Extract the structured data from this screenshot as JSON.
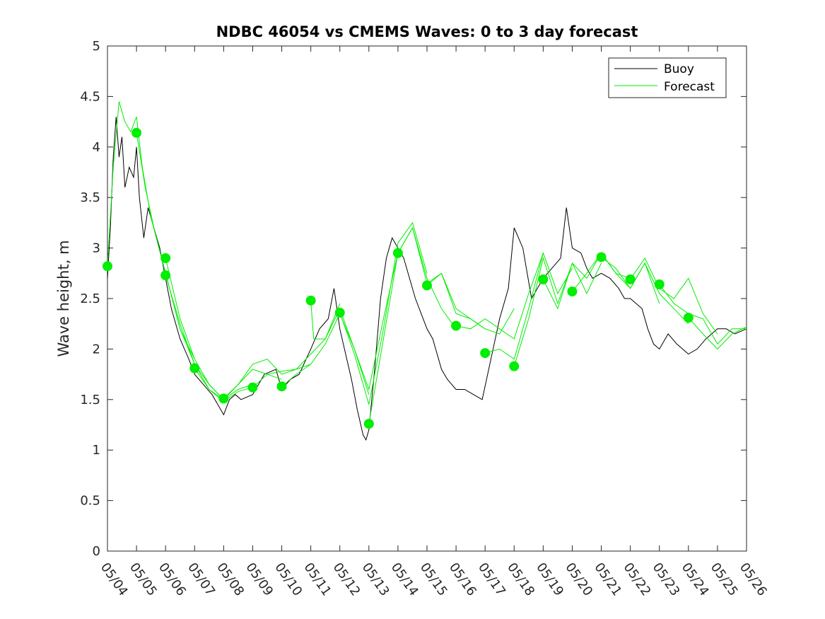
{
  "chart_data": {
    "type": "line",
    "title": "NDBC 46054 vs CMEMS Waves: 0 to 3 day forecast",
    "xlabel": "",
    "ylabel": "Wave height, m",
    "xlim": [
      "05/04",
      "05/26"
    ],
    "ylim": [
      0,
      5
    ],
    "x_tick_labels": [
      "05/04",
      "05/05",
      "05/06",
      "05/07",
      "05/08",
      "05/09",
      "05/10",
      "05/11",
      "05/12",
      "05/13",
      "05/14",
      "05/15",
      "05/16",
      "05/17",
      "05/18",
      "05/19",
      "05/20",
      "05/21",
      "05/22",
      "05/23",
      "05/24",
      "05/25",
      "05/26"
    ],
    "y_ticks": [
      0,
      0.5,
      1,
      1.5,
      2,
      2.5,
      3,
      3.5,
      4,
      4.5,
      5
    ],
    "y_tick_labels": [
      "0",
      "0.5",
      "1",
      "1.5",
      "2",
      "2.5",
      "3",
      "3.5",
      "4",
      "4.5",
      "5"
    ],
    "grid": false,
    "legend_position": "top-right",
    "colors": {
      "buoy": "#000000",
      "forecast": "#00ee00"
    },
    "series": [
      {
        "name": "Buoy",
        "style": "thin black line",
        "x_days": [
          0,
          0.1,
          0.2,
          0.3,
          0.4,
          0.5,
          0.6,
          0.75,
          0.9,
          1.0,
          1.1,
          1.25,
          1.4,
          1.6,
          1.8,
          2.0,
          2.2,
          2.5,
          2.8,
          3.0,
          3.3,
          3.6,
          3.8,
          4.0,
          4.2,
          4.4,
          4.6,
          5.0,
          5.4,
          5.8,
          6.0,
          6.3,
          6.6,
          7.0,
          7.3,
          7.6,
          7.8,
          8.0,
          8.2,
          8.4,
          8.6,
          8.8,
          8.9,
          9.0,
          9.2,
          9.4,
          9.6,
          9.8,
          10.0,
          10.2,
          10.4,
          10.6,
          10.8,
          11.0,
          11.2,
          11.3,
          11.5,
          11.7,
          12.0,
          12.3,
          12.6,
          12.9,
          13.2,
          13.5,
          13.8,
          14.0,
          14.3,
          14.6,
          15.0,
          15.3,
          15.6,
          15.8,
          16.0,
          16.3,
          16.5,
          16.7,
          17.0,
          17.3,
          17.6,
          17.8,
          18.0,
          18.2,
          18.4,
          18.6,
          18.8,
          19.0,
          19.3,
          19.6,
          20.0,
          20.3,
          20.6,
          20.8,
          21.0,
          21.3,
          21.6,
          22.0
        ],
        "values": [
          2.7,
          3.2,
          3.9,
          4.3,
          3.9,
          4.1,
          3.6,
          3.8,
          3.7,
          4.0,
          3.5,
          3.1,
          3.4,
          3.2,
          3.0,
          2.7,
          2.4,
          2.1,
          1.9,
          1.75,
          1.65,
          1.55,
          1.45,
          1.35,
          1.5,
          1.55,
          1.5,
          1.55,
          1.75,
          1.8,
          1.6,
          1.7,
          1.75,
          2.0,
          2.2,
          2.3,
          2.6,
          2.2,
          1.95,
          1.7,
          1.4,
          1.15,
          1.1,
          1.2,
          1.8,
          2.5,
          2.9,
          3.1,
          3.0,
          2.9,
          2.7,
          2.5,
          2.35,
          2.2,
          2.1,
          2.0,
          1.8,
          1.7,
          1.6,
          1.6,
          1.55,
          1.5,
          1.9,
          2.3,
          2.6,
          3.2,
          3.0,
          2.5,
          2.7,
          2.8,
          2.9,
          3.4,
          3.0,
          2.95,
          2.8,
          2.7,
          2.75,
          2.7,
          2.6,
          2.5,
          2.5,
          2.45,
          2.4,
          2.2,
          2.05,
          2.0,
          2.15,
          2.05,
          1.95,
          2.0,
          2.1,
          2.15,
          2.2,
          2.2,
          2.15,
          2.2
        ]
      },
      {
        "name": "Forecast",
        "style": "thin green lines, one per forecast cycle, dot at each cycle start",
        "runs": [
          {
            "start_day": 0,
            "x_days": [
              0,
              0.2,
              0.4,
              0.6,
              0.8,
              1.0,
              1.2,
              1.5,
              2.0,
              2.5,
              3.0
            ],
            "values": [
              2.82,
              3.8,
              4.45,
              4.25,
              4.15,
              4.3,
              3.8,
              3.3,
              2.75,
              2.2,
              1.9
            ]
          },
          {
            "start_day": 1,
            "x_days": [
              1.0,
              1.3,
              1.6,
              2.0,
              2.5,
              3.0,
              3.5,
              4.0
            ],
            "values": [
              4.14,
              3.6,
              3.2,
              2.75,
              2.2,
              1.85,
              1.65,
              1.5
            ]
          },
          {
            "start_day": 2,
            "x_days": [
              2.0,
              2.5,
              3.0,
              3.5,
              4.0,
              4.5,
              5.0
            ],
            "values": [
              2.9,
              2.3,
              1.9,
              1.65,
              1.5,
              1.6,
              1.65
            ]
          },
          {
            "start_day": 2,
            "x_days": [
              2.0,
              2.5,
              3.0,
              3.5,
              4.0,
              4.5,
              5.0
            ],
            "values": [
              2.73,
              2.25,
              1.85,
              1.6,
              1.48,
              1.58,
              1.62
            ]
          },
          {
            "start_day": 3,
            "x_days": [
              3.0,
              3.5,
              4.0,
              4.5,
              5.0,
              5.5,
              6.0
            ],
            "values": [
              1.81,
              1.6,
              1.5,
              1.65,
              1.8,
              1.75,
              1.7
            ]
          },
          {
            "start_day": 4,
            "x_days": [
              4.0,
              4.5,
              5.0,
              5.5,
              6.0,
              6.5,
              7.0
            ],
            "values": [
              1.51,
              1.65,
              1.85,
              1.9,
              1.75,
              1.8,
              1.85
            ]
          },
          {
            "start_day": 5,
            "x_days": [
              5.0,
              5.5,
              6.0,
              6.5,
              7.0,
              7.5,
              8.0
            ],
            "values": [
              1.62,
              1.75,
              1.78,
              1.8,
              1.95,
              2.1,
              2.45
            ]
          },
          {
            "start_day": 6,
            "x_days": [
              6.0,
              6.5,
              7.0,
              7.5,
              8.0,
              8.5,
              9.0
            ],
            "values": [
              1.63,
              1.75,
              1.85,
              2.05,
              2.35,
              2.0,
              1.55
            ]
          },
          {
            "start_day": 7,
            "x_days": [
              7.0,
              7.1,
              7.5,
              8.0,
              8.5,
              9.0,
              9.5,
              10.0
            ],
            "values": [
              2.48,
              2.1,
              2.1,
              2.4,
              2.0,
              1.6,
              2.3,
              2.95
            ]
          },
          {
            "start_day": 8,
            "x_days": [
              8.0,
              8.5,
              9.0,
              9.5,
              10.0,
              10.5,
              11.0
            ],
            "values": [
              2.36,
              1.95,
              1.45,
              2.2,
              3.05,
              3.25,
              2.75
            ]
          },
          {
            "start_day": 9,
            "x_days": [
              9.0,
              9.5,
              10.0,
              10.5,
              11.0,
              11.5,
              12.0
            ],
            "values": [
              1.26,
              2.1,
              2.95,
              3.2,
              2.7,
              2.4,
              2.2
            ]
          },
          {
            "start_day": 10,
            "x_days": [
              10.0,
              10.5,
              11.0,
              11.5,
              12.0,
              12.5,
              13.0
            ],
            "values": [
              2.95,
              3.2,
              2.65,
              2.75,
              2.4,
              2.3,
              2.2
            ]
          },
          {
            "start_day": 11,
            "x_days": [
              11.0,
              11.5,
              12.0,
              12.5,
              13.0,
              13.5,
              14.0
            ],
            "values": [
              2.63,
              2.75,
              2.35,
              2.3,
              2.2,
              2.15,
              2.4
            ]
          },
          {
            "start_day": 12,
            "x_days": [
              12.0,
              12.5,
              13.0,
              13.5,
              14.0,
              14.5,
              15.0
            ],
            "values": [
              2.23,
              2.2,
              2.3,
              2.2,
              2.1,
              2.55,
              2.95
            ]
          },
          {
            "start_day": 13,
            "x_days": [
              13.0,
              13.5,
              14.0,
              14.5,
              15.0,
              15.5,
              16.0
            ],
            "values": [
              1.96,
              2.0,
              1.9,
              2.4,
              2.95,
              2.55,
              2.8
            ]
          },
          {
            "start_day": 14,
            "x_days": [
              14.0,
              14.5,
              15.0,
              15.5,
              16.0,
              16.5,
              17.0
            ],
            "values": [
              1.83,
              2.3,
              2.9,
              2.45,
              2.85,
              2.55,
              2.85
            ]
          },
          {
            "start_day": 15,
            "x_days": [
              15.0,
              15.5,
              16.0,
              16.5,
              17.0,
              17.5,
              18.0
            ],
            "values": [
              2.69,
              2.4,
              2.85,
              2.7,
              2.95,
              2.75,
              2.7
            ]
          },
          {
            "start_day": 16,
            "x_days": [
              16.0,
              16.5,
              17.0,
              17.5,
              18.0,
              18.5,
              19.0
            ],
            "values": [
              2.57,
              2.75,
              2.95,
              2.75,
              2.6,
              2.85,
              2.45
            ]
          },
          {
            "start_day": 17,
            "x_days": [
              17.0,
              17.5,
              18.0,
              18.5,
              19.0,
              19.5,
              20.0
            ],
            "values": [
              2.91,
              2.8,
              2.6,
              2.85,
              2.55,
              2.4,
              2.25
            ]
          },
          {
            "start_day": 18,
            "x_days": [
              18.0,
              18.5,
              19.0,
              19.5,
              20.0,
              20.5,
              21.0
            ],
            "values": [
              2.69,
              2.9,
              2.6,
              2.5,
              2.7,
              2.35,
              2.15
            ]
          },
          {
            "start_day": 19,
            "x_days": [
              19.0,
              19.5,
              20.0,
              20.5,
              21.0,
              21.5,
              22.0
            ],
            "values": [
              2.64,
              2.45,
              2.35,
              2.3,
              2.05,
              2.2,
              2.2
            ]
          },
          {
            "start_day": 20,
            "x_days": [
              20.0,
              20.5,
              21.0,
              21.5,
              22.0
            ],
            "values": [
              2.31,
              2.15,
              2.0,
              2.15,
              2.22
            ]
          }
        ]
      }
    ]
  }
}
